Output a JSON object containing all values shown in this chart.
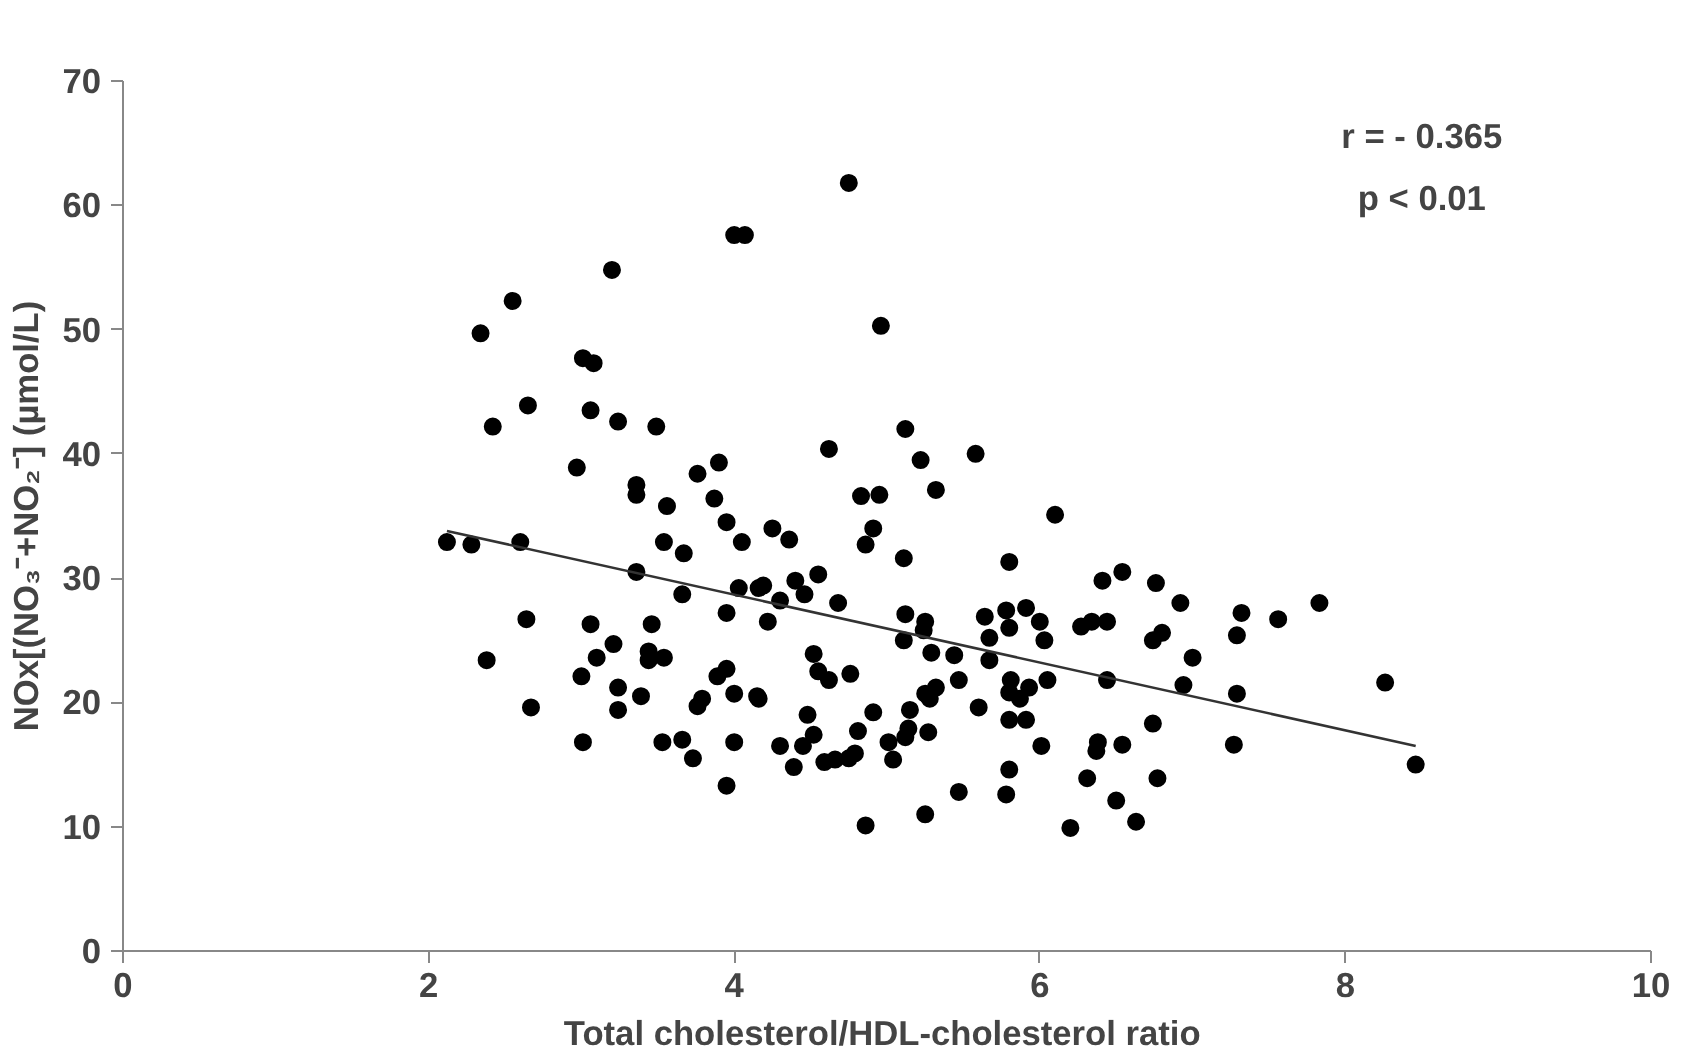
{
  "chart_data": {
    "type": "scatter",
    "xlabel": "Total  cholesterol/HDL-cholesterol ratio",
    "ylabel": "NOx[(NO₃⁻+NO₂⁻] (µmol/L)",
    "annotations": [
      "r = - 0.365",
      "p < 0.01"
    ],
    "xlim": [
      0,
      10
    ],
    "xticks": [
      0,
      2,
      4,
      6,
      8,
      10
    ],
    "ylim": [
      0,
      70
    ],
    "yticks": [
      0,
      10,
      20,
      30,
      40,
      50,
      60,
      70
    ],
    "grid": false,
    "marker": "circle",
    "series": [
      {
        "color": "#000000",
        "x": [
          2.12,
          2.28,
          2.6,
          2.34,
          2.55,
          3.2,
          4.0,
          4.07,
          3.01,
          3.08,
          2.65,
          2.42,
          3.06,
          3.24,
          3.49,
          2.97,
          3.36,
          3.36,
          3.56,
          3.76,
          3.9,
          3.87,
          3.95,
          4.05,
          3.54,
          3.67,
          3.36,
          3.66,
          4.03,
          3.95,
          2.64,
          3.06,
          3.46,
          2.38,
          3.1,
          3.21,
          3.44,
          3.44,
          3.54,
          3.0,
          3.24,
          3.39,
          3.79,
          3.76,
          3.89,
          3.95,
          4.0,
          2.67,
          3.24,
          3.01,
          3.53,
          3.66,
          3.73,
          4.0,
          3.95,
          4.16,
          4.15,
          4.75,
          4.96,
          4.62,
          5.12,
          5.22,
          5.58,
          5.32,
          4.83,
          4.95,
          4.91,
          4.86,
          5.11,
          6.1,
          5.8,
          6.41,
          6.54,
          6.76,
          4.25,
          4.36,
          4.19,
          4.4,
          4.55,
          4.46,
          4.3,
          4.22,
          4.68,
          5.12,
          5.25,
          5.24,
          5.11,
          5.29,
          5.44,
          5.64,
          5.78,
          5.8,
          5.91,
          6.0,
          6.03,
          5.67,
          5.67,
          6.27,
          6.34,
          6.44,
          6.92,
          6.74,
          6.8,
          7.0,
          6.94,
          6.44,
          6.05,
          5.93,
          5.81,
          5.8,
          5.87,
          5.8,
          5.91,
          5.6,
          5.47,
          5.32,
          5.25,
          5.28,
          5.15,
          5.14,
          5.12,
          5.27,
          5.01,
          5.04,
          4.91,
          4.81,
          4.79,
          4.75,
          4.66,
          4.59,
          4.48,
          4.52,
          4.45,
          4.39,
          4.3,
          4.52,
          4.55,
          4.62,
          4.76,
          4.16,
          4.86,
          5.25,
          5.47,
          5.78,
          5.8,
          6.01,
          6.2,
          6.31,
          6.38,
          6.37,
          6.54,
          6.5,
          6.63,
          6.77,
          6.74,
          7.32,
          7.29,
          7.56,
          7.83,
          7.29,
          8.26,
          7.27,
          8.46
        ],
        "values": [
          32.9,
          32.7,
          32.9,
          49.7,
          52.3,
          54.8,
          57.6,
          57.6,
          47.7,
          47.3,
          43.9,
          42.2,
          43.5,
          42.6,
          42.2,
          38.9,
          37.5,
          36.7,
          35.8,
          38.4,
          39.3,
          36.4,
          34.5,
          32.9,
          32.9,
          32.0,
          30.5,
          28.7,
          29.2,
          27.2,
          26.7,
          26.3,
          26.3,
          23.4,
          23.6,
          24.7,
          24.1,
          23.4,
          23.6,
          22.1,
          21.2,
          20.5,
          20.3,
          19.7,
          22.1,
          22.7,
          20.7,
          19.6,
          19.4,
          16.8,
          16.8,
          17.0,
          15.5,
          16.8,
          13.3,
          29.2,
          20.5,
          61.8,
          50.3,
          40.4,
          42.0,
          39.5,
          40.0,
          37.1,
          36.6,
          36.7,
          34.0,
          32.7,
          31.6,
          35.1,
          31.3,
          29.8,
          30.5,
          29.6,
          34.0,
          33.1,
          29.4,
          29.8,
          30.3,
          28.7,
          28.2,
          26.5,
          28.0,
          27.1,
          26.5,
          25.8,
          25.0,
          24.0,
          23.8,
          26.9,
          27.4,
          26.0,
          27.6,
          26.5,
          25.0,
          25.2,
          23.4,
          26.1,
          26.5,
          26.5,
          28.0,
          25.0,
          25.6,
          23.6,
          21.4,
          21.8,
          21.8,
          21.2,
          21.8,
          20.8,
          20.3,
          18.6,
          18.6,
          19.6,
          21.8,
          21.2,
          20.7,
          20.3,
          19.4,
          17.9,
          17.2,
          17.6,
          16.8,
          15.4,
          19.2,
          17.7,
          15.9,
          15.5,
          15.4,
          15.2,
          19.0,
          17.4,
          16.5,
          14.8,
          16.5,
          23.9,
          22.5,
          21.8,
          22.3,
          20.3,
          10.1,
          11.0,
          12.8,
          12.6,
          14.6,
          16.5,
          9.9,
          13.9,
          16.8,
          16.1,
          16.6,
          12.1,
          10.4,
          13.9,
          18.3,
          27.2,
          25.4,
          26.7,
          28.0,
          20.7,
          21.6,
          16.6,
          15.0
        ]
      },
      {
        "type": "line",
        "color": "#333333",
        "line_style": "solid",
        "marker": "none",
        "x": [
          2.12,
          8.46
        ],
        "values": [
          33.8,
          16.5
        ]
      }
    ]
  }
}
